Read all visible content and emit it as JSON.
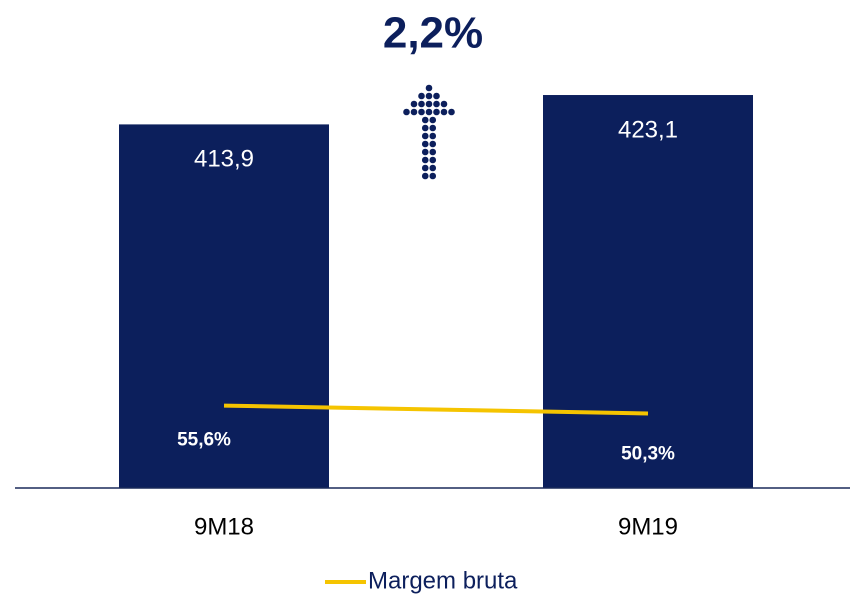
{
  "chart_data": {
    "type": "bar",
    "annotation": "2,2%",
    "categories": [
      "9M18",
      "9M19"
    ],
    "series": [
      {
        "type": "bar",
        "color": "#0c1f5c",
        "values": [
          413.9,
          423.1
        ],
        "value_labels": [
          "413,9",
          "423,1"
        ]
      },
      {
        "type": "line",
        "name": "Margem bruta",
        "axis": "y2",
        "color": "#f5c400",
        "values": [
          55.6,
          50.3
        ],
        "value_labels": [
          "55,6%",
          "50,3%"
        ]
      }
    ],
    "ylim": [
      300,
      430
    ],
    "y2lim": [
      0,
      280
    ],
    "legend": "bottom"
  }
}
